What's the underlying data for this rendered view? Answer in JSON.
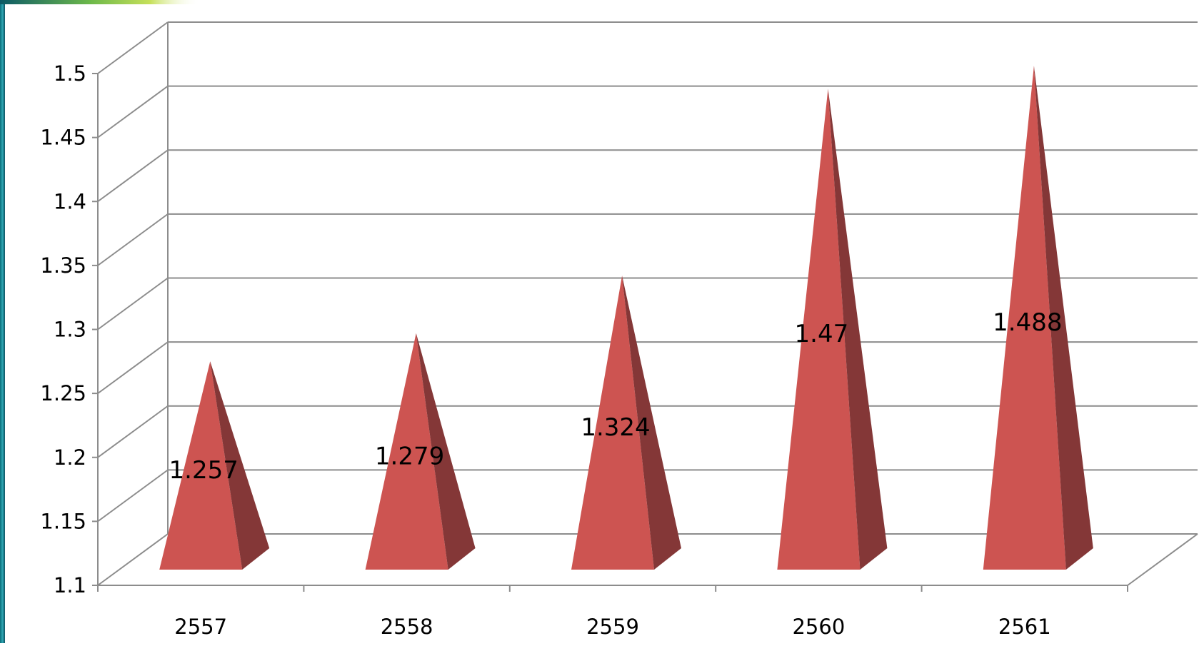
{
  "chart_data": {
    "type": "bar",
    "shape": "pyramid-3d",
    "categories": [
      "2557",
      "2558",
      "2559",
      "2560",
      "2561"
    ],
    "values": [
      1.257,
      1.279,
      1.324,
      1.47,
      1.488
    ],
    "data_labels": [
      "1.257",
      "1.279",
      "1.324",
      "1.47",
      "1.488"
    ],
    "y_ticks": [
      "1.1",
      "1.15",
      "1.2",
      "1.25",
      "1.3",
      "1.35",
      "1.4",
      "1.45",
      "1.5"
    ],
    "ylim": [
      1.1,
      1.5
    ],
    "grid": true,
    "legend": "none",
    "colors": {
      "pyramid_front": "#cd5451",
      "pyramid_side": "#843737",
      "grid": "#8c8c8c",
      "text": "#000000"
    }
  }
}
